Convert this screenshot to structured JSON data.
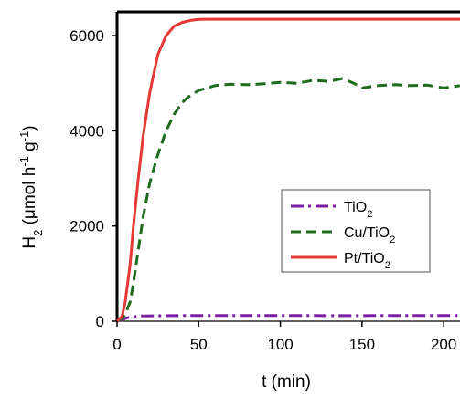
{
  "chart_data": {
    "type": "line",
    "xlabel": "t (min)",
    "ylabel_main": "H",
    "ylabel_sub": "2",
    "ylabel_rest": " (μmol h",
    "ylabel_sup1": "-1",
    "ylabel_mid": " g",
    "ylabel_sup2": "-1",
    "ylabel_end": ")",
    "xlim": [
      0,
      210
    ],
    "ylim": [
      0,
      6500
    ],
    "xticks": [
      "0",
      "50",
      "100",
      "150",
      "200"
    ],
    "yticks": [
      "0",
      "2000",
      "4000",
      "6000"
    ],
    "grid": false,
    "legend_position": "center-right",
    "series": [
      {
        "name_main": "TiO",
        "name_sub": "2",
        "color": "#7B1FA2",
        "style": "dashdot",
        "x": [
          0,
          3,
          6,
          10,
          15,
          25,
          40,
          60,
          80,
          100,
          120,
          140,
          160,
          180,
          200,
          210
        ],
        "y": [
          0,
          30,
          70,
          95,
          110,
          115,
          118,
          120,
          118,
          120,
          118,
          117,
          119,
          120,
          118,
          118
        ]
      },
      {
        "name_main": "Cu/TiO",
        "name_sub": "2",
        "color": "#1E6B1E",
        "style": "dashed",
        "x": [
          0,
          3,
          5,
          8,
          10,
          13,
          16,
          20,
          25,
          30,
          35,
          40,
          45,
          50,
          55,
          60,
          70,
          80,
          90,
          100,
          110,
          120,
          130,
          138,
          145,
          150,
          160,
          170,
          180,
          190,
          200,
          210
        ],
        "y": [
          0,
          50,
          150,
          400,
          800,
          1500,
          2200,
          2900,
          3500,
          4000,
          4350,
          4600,
          4750,
          4850,
          4900,
          4950,
          4980,
          4970,
          4990,
          5020,
          5000,
          5060,
          5040,
          5100,
          5000,
          4900,
          4950,
          4970,
          4950,
          4960,
          4900,
          4950
        ]
      },
      {
        "name_main": "Pt/TiO",
        "name_sub": "2",
        "color": "#E53935",
        "style": "solid",
        "x": [
          0,
          3,
          5,
          8,
          10,
          13,
          16,
          20,
          25,
          30,
          35,
          40,
          45,
          50,
          55,
          60,
          80,
          100,
          150,
          200,
          210
        ],
        "y": [
          0,
          100,
          400,
          1200,
          2000,
          3000,
          3900,
          4800,
          5600,
          6000,
          6200,
          6280,
          6320,
          6340,
          6345,
          6345,
          6345,
          6345,
          6345,
          6345,
          6345
        ]
      }
    ]
  }
}
